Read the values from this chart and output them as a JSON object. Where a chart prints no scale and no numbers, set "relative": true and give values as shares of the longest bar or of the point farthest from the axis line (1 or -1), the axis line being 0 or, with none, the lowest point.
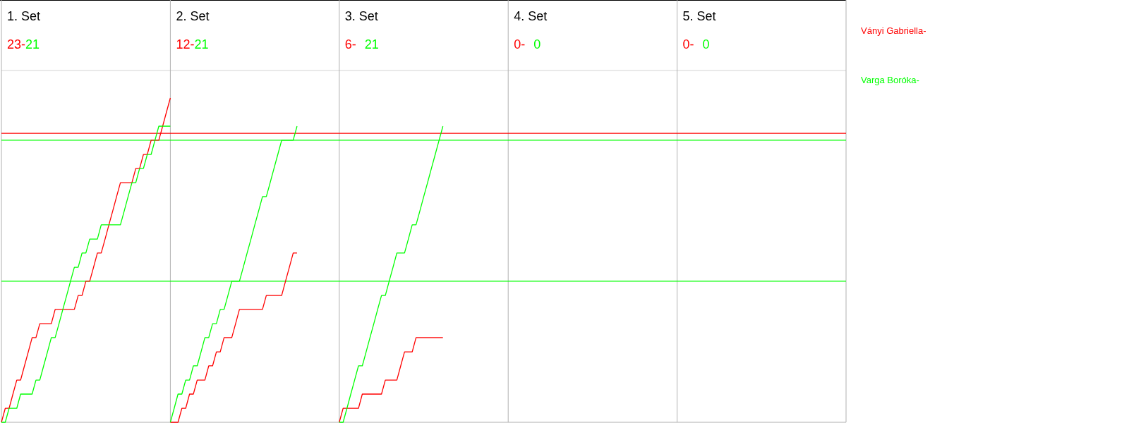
{
  "chart_data": {
    "type": "line",
    "relative": true,
    "annotations": [
      "1. Set",
      "23-",
      "21",
      "2. Set",
      "12-",
      "21",
      "3. Set",
      "6-",
      "21",
      "4. Set",
      "0-",
      "0",
      "5. Set",
      "0-",
      "0"
    ],
    "ref_lines": [
      {
        "axis": "y",
        "value": 0.891,
        "color": "#ff0000"
      },
      {
        "axis": "y",
        "value": 0.87,
        "color": "#00ff00"
      },
      {
        "axis": "y",
        "value": 0.435,
        "color": "#00ff00"
      }
    ],
    "categories": [
      null,
      null,
      null,
      null,
      null,
      null,
      null,
      null,
      null,
      null,
      null,
      null,
      null,
      null,
      null,
      null,
      null,
      null,
      null,
      null,
      null,
      null,
      null,
      null,
      null,
      null,
      null,
      null,
      null,
      null,
      null,
      null,
      null,
      null,
      null,
      null,
      null,
      null,
      null,
      null,
      null,
      null,
      null,
      null,
      null,
      null,
      null,
      null,
      null,
      null,
      null,
      null,
      null,
      null,
      null,
      null,
      null,
      null,
      null,
      null,
      null,
      null,
      null,
      null,
      null,
      null,
      null,
      null,
      null,
      null,
      null,
      null,
      null,
      null,
      null,
      null,
      null,
      null,
      null,
      null,
      null,
      null,
      null,
      null,
      null,
      null,
      null,
      null,
      null,
      null,
      null,
      null,
      null,
      null,
      null,
      null,
      null,
      null,
      null,
      null,
      null,
      null,
      null,
      null,
      null,
      null,
      null,
      null,
      null,
      null,
      null,
      null,
      null,
      null,
      null,
      null,
      null,
      null,
      null,
      null,
      null,
      null,
      null,
      null,
      null,
      null,
      null,
      null,
      null,
      null,
      null,
      null,
      null,
      null,
      null,
      null,
      null,
      null,
      null,
      null,
      null,
      null,
      null,
      null,
      null,
      null,
      null,
      null,
      null,
      null,
      null,
      null,
      null,
      null,
      null,
      null,
      null,
      null,
      null,
      null,
      null,
      null,
      null,
      null,
      null,
      null,
      null,
      null,
      null,
      null,
      null,
      null,
      null,
      null,
      null,
      null,
      null,
      null,
      null,
      null,
      null,
      null,
      null,
      null,
      null,
      null,
      null,
      null,
      null,
      null,
      null,
      null,
      null,
      null,
      null,
      null,
      null,
      null,
      null,
      null,
      null,
      null,
      null,
      null,
      null,
      null,
      null,
      null,
      null,
      null,
      null,
      null,
      null,
      null,
      null,
      null,
      null,
      null,
      null,
      null,
      null
    ],
    "series": [
      {
        "name": "Ványi Gabriella-",
        "color": "#ff0000",
        "values": [
          0,
          0.043,
          0.043,
          0.087,
          0.13,
          0.13,
          0.174,
          0.217,
          0.261,
          0.261,
          0.304,
          0.304,
          0.304,
          0.304,
          0.348,
          0.348,
          0.348,
          0.348,
          0.348,
          0.348,
          0.391,
          0.391,
          0.435,
          0.435,
          0.478,
          0.522,
          0.522,
          0.565,
          0.609,
          0.652,
          0.696,
          0.739,
          0.739,
          0.739,
          0.739,
          0.783,
          0.783,
          0.826,
          0.826,
          0.87,
          0.87,
          0.87,
          0.913,
          0.957,
          1,
          null,
          null,
          null,
          null,
          null,
          null,
          null,
          null,
          null,
          null,
          null,
          null,
          null,
          null,
          null,
          null,
          null,
          null,
          null,
          null,
          null,
          null,
          null,
          null,
          null,
          null,
          null,
          null,
          null,
          null,
          null,
          null,
          null,
          null,
          null,
          null,
          null,
          null,
          null,
          null,
          null,
          null,
          null,
          null,
          null,
          null,
          null,
          null,
          null,
          null,
          null,
          null,
          null,
          null,
          null,
          null,
          null,
          null,
          null,
          null,
          null,
          null,
          null,
          null,
          null,
          null,
          null,
          null,
          null,
          null,
          null,
          null,
          null,
          null,
          null,
          null,
          null,
          null,
          null,
          null,
          null,
          null,
          null,
          null,
          null,
          null,
          null,
          null,
          null,
          null,
          null,
          null,
          null,
          null,
          null,
          null,
          null,
          null,
          null,
          null,
          null,
          null,
          null,
          null,
          null,
          null,
          null,
          null,
          null,
          null,
          null,
          null,
          null,
          null,
          null,
          null,
          null,
          null,
          null,
          null,
          null,
          null,
          null,
          null,
          null,
          null,
          null,
          null,
          null,
          null,
          null,
          null,
          null,
          null,
          null,
          null,
          null,
          null,
          null,
          null,
          null,
          null,
          null,
          null,
          null,
          null,
          null,
          null,
          null,
          null,
          null,
          null,
          null,
          null,
          null,
          null,
          null,
          null,
          null,
          null,
          null,
          null,
          null,
          null,
          null,
          null,
          null,
          null,
          null,
          null,
          null,
          null,
          null,
          null,
          null,
          null
        ]
      },
      {
        "name": "Varga Boróka-",
        "color": "#00ff00",
        "values": [
          0,
          0,
          0.043,
          0.043,
          0.043,
          0.087,
          0.087,
          0.087,
          0.087,
          0.13,
          0.13,
          0.174,
          0.217,
          0.261,
          0.261,
          0.304,
          0.348,
          0.391,
          0.435,
          0.478,
          0.478,
          0.522,
          0.522,
          0.565,
          0.565,
          0.565,
          0.609,
          0.609,
          0.609,
          0.609,
          0.609,
          0.609,
          0.652,
          0.696,
          0.739,
          0.739,
          0.783,
          0.783,
          0.826,
          0.826,
          0.87,
          0.913,
          0.913,
          0.913,
          0.913,
          null,
          null,
          null,
          null,
          null,
          null,
          null,
          null,
          null,
          null,
          null,
          null,
          null,
          null,
          null,
          null,
          null,
          null,
          null,
          null,
          null,
          null,
          null,
          null,
          null,
          null,
          null,
          null,
          null,
          null,
          null,
          null,
          null,
          null,
          null,
          null,
          null,
          null,
          null,
          null,
          null,
          null,
          null,
          null,
          null,
          null,
          null,
          null,
          null,
          null,
          null,
          null,
          null,
          null,
          null,
          null,
          null,
          null,
          null,
          null,
          null,
          null,
          null,
          null,
          null,
          null,
          null,
          null,
          null,
          null,
          null,
          null,
          null,
          null,
          null,
          null,
          null,
          null,
          null,
          null,
          null,
          null,
          null,
          null,
          null,
          null,
          null,
          null,
          null,
          null,
          null,
          null,
          null,
          null,
          null,
          null,
          null,
          null,
          null,
          null,
          null,
          null,
          null,
          null,
          null,
          null,
          null,
          null,
          null,
          null,
          null,
          null,
          null,
          null,
          null,
          null,
          null,
          null,
          null,
          null,
          null,
          null,
          null,
          null,
          null,
          null,
          null,
          null,
          null,
          null,
          null,
          null,
          null,
          null,
          null,
          null,
          null,
          null,
          null,
          null,
          null,
          null,
          null,
          null,
          null,
          null,
          null,
          null,
          null,
          null,
          null,
          null,
          null,
          null,
          null,
          null,
          null,
          null,
          null,
          null,
          null,
          null,
          null,
          null,
          null,
          null,
          null,
          null,
          null,
          null,
          null,
          null,
          null,
          null,
          null,
          null
        ]
      },
      {
        "color": "#ff0000",
        "values": [
          null,
          null,
          null,
          null,
          null,
          null,
          null,
          null,
          null,
          null,
          null,
          null,
          null,
          null,
          null,
          null,
          null,
          null,
          null,
          null,
          null,
          null,
          null,
          null,
          null,
          null,
          null,
          null,
          null,
          null,
          null,
          null,
          null,
          null,
          null,
          null,
          null,
          null,
          null,
          null,
          null,
          null,
          null,
          null,
          0,
          0,
          0,
          0.043,
          0.043,
          0.087,
          0.087,
          0.13,
          0.13,
          0.13,
          0.174,
          0.174,
          0.217,
          0.217,
          0.261,
          0.261,
          0.261,
          0.304,
          0.348,
          0.348,
          0.348,
          0.348,
          0.348,
          0.348,
          0.348,
          0.391,
          0.391,
          0.391,
          0.391,
          0.391,
          0.435,
          0.478,
          0.522,
          0.522,
          null,
          null,
          null,
          null,
          null,
          null,
          null,
          null,
          null,
          null,
          null,
          null,
          null,
          null,
          null,
          null,
          null,
          null,
          null,
          null,
          null,
          null,
          null,
          null,
          null,
          null,
          null,
          null,
          null,
          null,
          null,
          null,
          null,
          null,
          null,
          null,
          null,
          null,
          null,
          null,
          null,
          null,
          null,
          null,
          null,
          null,
          null,
          null,
          null,
          null,
          null,
          null,
          null,
          null,
          null,
          null,
          null,
          null,
          null,
          null,
          null,
          null,
          null,
          null,
          null,
          null,
          null,
          null,
          null,
          null,
          null,
          null,
          null,
          null,
          null,
          null,
          null,
          null,
          null,
          null,
          null,
          null,
          null,
          null,
          null,
          null,
          null,
          null,
          null,
          null,
          null,
          null,
          null,
          null,
          null,
          null,
          null,
          null,
          null,
          null,
          null,
          null,
          null,
          null,
          null,
          null,
          null,
          null,
          null,
          null,
          null,
          null,
          null,
          null,
          null,
          null,
          null,
          null,
          null,
          null,
          null,
          null,
          null,
          null,
          null,
          null,
          null,
          null,
          null,
          null,
          null,
          null,
          null,
          null,
          null,
          null,
          null,
          null,
          null,
          null,
          null,
          null,
          null
        ]
      },
      {
        "color": "#00ff00",
        "values": [
          null,
          null,
          null,
          null,
          null,
          null,
          null,
          null,
          null,
          null,
          null,
          null,
          null,
          null,
          null,
          null,
          null,
          null,
          null,
          null,
          null,
          null,
          null,
          null,
          null,
          null,
          null,
          null,
          null,
          null,
          null,
          null,
          null,
          null,
          null,
          null,
          null,
          null,
          null,
          null,
          null,
          null,
          null,
          null,
          0,
          0.043,
          0.087,
          0.087,
          0.13,
          0.13,
          0.174,
          0.174,
          0.217,
          0.261,
          0.261,
          0.304,
          0.304,
          0.348,
          0.348,
          0.391,
          0.435,
          0.435,
          0.435,
          0.478,
          0.522,
          0.565,
          0.609,
          0.652,
          0.696,
          0.696,
          0.739,
          0.783,
          0.826,
          0.87,
          0.87,
          0.87,
          0.87,
          0.913,
          null,
          null,
          null,
          null,
          null,
          null,
          null,
          null,
          null,
          null,
          null,
          null,
          null,
          null,
          null,
          null,
          null,
          null,
          null,
          null,
          null,
          null,
          null,
          null,
          null,
          null,
          null,
          null,
          null,
          null,
          null,
          null,
          null,
          null,
          null,
          null,
          null,
          null,
          null,
          null,
          null,
          null,
          null,
          null,
          null,
          null,
          null,
          null,
          null,
          null,
          null,
          null,
          null,
          null,
          null,
          null,
          null,
          null,
          null,
          null,
          null,
          null,
          null,
          null,
          null,
          null,
          null,
          null,
          null,
          null,
          null,
          null,
          null,
          null,
          null,
          null,
          null,
          null,
          null,
          null,
          null,
          null,
          null,
          null,
          null,
          null,
          null,
          null,
          null,
          null,
          null,
          null,
          null,
          null,
          null,
          null,
          null,
          null,
          null,
          null,
          null,
          null,
          null,
          null,
          null,
          null,
          null,
          null,
          null,
          null,
          null,
          null,
          null,
          null,
          null,
          null,
          null,
          null,
          null,
          null,
          null,
          null,
          null,
          null,
          null,
          null,
          null,
          null,
          null,
          null,
          null,
          null,
          null,
          null,
          null,
          null,
          null,
          null,
          null,
          null,
          null,
          null,
          null
        ]
      },
      {
        "color": "#ff0000",
        "values": [
          null,
          null,
          null,
          null,
          null,
          null,
          null,
          null,
          null,
          null,
          null,
          null,
          null,
          null,
          null,
          null,
          null,
          null,
          null,
          null,
          null,
          null,
          null,
          null,
          null,
          null,
          null,
          null,
          null,
          null,
          null,
          null,
          null,
          null,
          null,
          null,
          null,
          null,
          null,
          null,
          null,
          null,
          null,
          null,
          null,
          null,
          null,
          null,
          null,
          null,
          null,
          null,
          null,
          null,
          null,
          null,
          null,
          null,
          null,
          null,
          null,
          null,
          null,
          null,
          null,
          null,
          null,
          null,
          null,
          null,
          null,
          null,
          null,
          null,
          null,
          null,
          null,
          null,
          null,
          null,
          null,
          null,
          null,
          null,
          null,
          null,
          null,
          null,
          0,
          0.043,
          0.043,
          0.043,
          0.043,
          0.043,
          0.087,
          0.087,
          0.087,
          0.087,
          0.087,
          0.087,
          0.13,
          0.13,
          0.13,
          0.13,
          0.174,
          0.217,
          0.217,
          0.217,
          0.261,
          0.261,
          0.261,
          0.261,
          0.261,
          0.261,
          0.261,
          0.261,
          null,
          null,
          null,
          null,
          null,
          null,
          null,
          null,
          null,
          null,
          null,
          null,
          null,
          null,
          null,
          null,
          null,
          null,
          null,
          null,
          null,
          null,
          null,
          null,
          null,
          null,
          null,
          null,
          null,
          null,
          null,
          null,
          null,
          null,
          null,
          null,
          null,
          null,
          null,
          null,
          null,
          null,
          null,
          null,
          null,
          null,
          null,
          null,
          null,
          null,
          null,
          null,
          null,
          null,
          null,
          null,
          null,
          null,
          null,
          null,
          null,
          null,
          null,
          null,
          null,
          null,
          null,
          null,
          null,
          null,
          null,
          null,
          null,
          null,
          null,
          null,
          null,
          null,
          null,
          null,
          null,
          null,
          null,
          null,
          null,
          null,
          null,
          null,
          null,
          null,
          null,
          null,
          null,
          null,
          null,
          null,
          null,
          null,
          null,
          null,
          null,
          null,
          null,
          null,
          null
        ]
      },
      {
        "color": "#00ff00",
        "values": [
          null,
          null,
          null,
          null,
          null,
          null,
          null,
          null,
          null,
          null,
          null,
          null,
          null,
          null,
          null,
          null,
          null,
          null,
          null,
          null,
          null,
          null,
          null,
          null,
          null,
          null,
          null,
          null,
          null,
          null,
          null,
          null,
          null,
          null,
          null,
          null,
          null,
          null,
          null,
          null,
          null,
          null,
          null,
          null,
          null,
          null,
          null,
          null,
          null,
          null,
          null,
          null,
          null,
          null,
          null,
          null,
          null,
          null,
          null,
          null,
          null,
          null,
          null,
          null,
          null,
          null,
          null,
          null,
          null,
          null,
          null,
          null,
          null,
          null,
          null,
          null,
          null,
          null,
          null,
          null,
          null,
          null,
          null,
          null,
          null,
          null,
          null,
          null,
          0,
          0,
          0.043,
          0.087,
          0.13,
          0.174,
          0.174,
          0.217,
          0.261,
          0.304,
          0.348,
          0.391,
          0.391,
          0.435,
          0.478,
          0.522,
          0.522,
          0.522,
          0.565,
          0.609,
          0.609,
          0.652,
          0.696,
          0.739,
          0.783,
          0.826,
          0.87,
          0.913,
          null,
          null,
          null,
          null,
          null,
          null,
          null,
          null,
          null,
          null,
          null,
          null,
          null,
          null,
          null,
          null,
          null,
          null,
          null,
          null,
          null,
          null,
          null,
          null,
          null,
          null,
          null,
          null,
          null,
          null,
          null,
          null,
          null,
          null,
          null,
          null,
          null,
          null,
          null,
          null,
          null,
          null,
          null,
          null,
          null,
          null,
          null,
          null,
          null,
          null,
          null,
          null,
          null,
          null,
          null,
          null,
          null,
          null,
          null,
          null,
          null,
          null,
          null,
          null,
          null,
          null,
          null,
          null,
          null,
          null,
          null,
          null,
          null,
          null,
          null,
          null,
          null,
          null,
          null,
          null,
          null,
          null,
          null,
          null,
          null,
          null,
          null,
          null,
          null,
          null,
          null,
          null,
          null,
          null,
          null,
          null,
          null,
          null,
          null,
          null,
          null,
          null,
          null,
          null,
          null
        ]
      }
    ]
  }
}
